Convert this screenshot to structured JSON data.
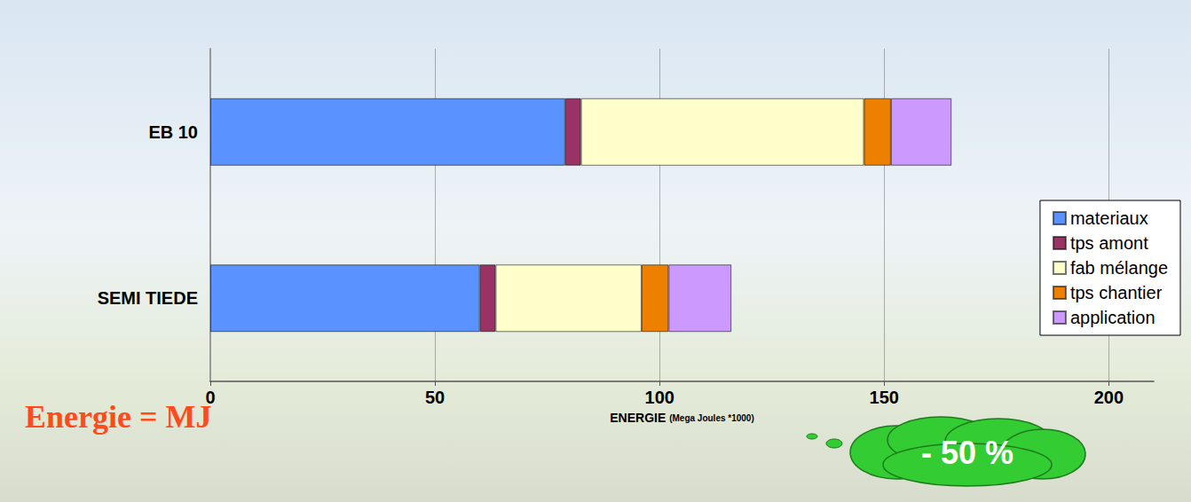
{
  "chart_data": {
    "type": "bar",
    "orientation": "horizontal",
    "stacked": true,
    "categories": [
      "EB 10",
      "SEMI TIEDE"
    ],
    "series": [
      {
        "name": "materiaux",
        "color": "#5a93ff",
        "values": [
          79,
          60
        ]
      },
      {
        "name": "tps amont",
        "color": "#993366",
        "values": [
          3.5,
          3.5
        ]
      },
      {
        "name": "fab mélange",
        "color": "#ffffcc",
        "values": [
          63,
          32.5
        ]
      },
      {
        "name": "tps chantier",
        "color": "#ee8000",
        "values": [
          6,
          6
        ]
      },
      {
        "name": "application",
        "color": "#cc99ff",
        "values": [
          13.5,
          14
        ]
      }
    ],
    "x_label": "ENERGIE (Mega Joules *1000)",
    "xlim": [
      0,
      210
    ],
    "xticks": [
      0,
      50,
      100,
      150,
      200
    ],
    "grid": true,
    "legend": "lower right",
    "annotations": [
      "Energie = MJ",
      "- 50 %"
    ]
  }
}
